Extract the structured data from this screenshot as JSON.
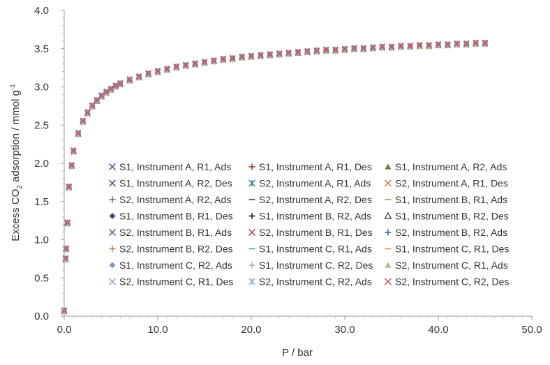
{
  "chart_data": {
    "type": "scatter",
    "title": "",
    "xlabel": "P / bar",
    "ylabel": {
      "prefix": "Excess CO",
      "sub": "2",
      "mid": " adsorption / mmol g",
      "sup": "-1"
    },
    "xlim": [
      0,
      50
    ],
    "ylim": [
      0,
      4
    ],
    "x_ticks": [
      "0.0",
      "10.0",
      "20.0",
      "30.0",
      "40.0",
      "50.0"
    ],
    "y_ticks": [
      "0.0",
      "0.5",
      "1.0",
      "1.5",
      "2.0",
      "2.5",
      "3.0",
      "3.5",
      "4.0"
    ],
    "grid": false,
    "legend_position": "lower-right, inside plot, 3 columns",
    "series": [
      {
        "name": "S1, Instrument A, R1, Ads",
        "color": "#3b4f8c",
        "marker": "x"
      },
      {
        "name": "S1, Instrument A, R1, Des",
        "color": "#9e2b2b",
        "marker": "+"
      },
      {
        "name": "S1, Instrument A, R2, Ads",
        "color": "#6b7b3a",
        "marker": "triangle"
      },
      {
        "name": "S1, Instrument A, R2, Des",
        "color": "#5b4a8a",
        "marker": "x"
      },
      {
        "name": "S2, Instrument A, R1, Ads",
        "color": "#3a8a96",
        "marker": "asterisk"
      },
      {
        "name": "S2, Instrument A, R1, Des",
        "color": "#d07a3a",
        "marker": "x"
      },
      {
        "name": "S2, Instrument A, R2, Ads",
        "color": "#4a6a9a",
        "marker": "+"
      },
      {
        "name": "S2, Instrument A, R2, Des",
        "color": "#333333",
        "marker": "dash"
      },
      {
        "name": "S1, Instrument B, R1, Ads",
        "color": "#8a9a4a",
        "marker": "dash"
      },
      {
        "name": "S1, Instrument B, R1, Des",
        "color": "#5a3a8a",
        "marker": "diamond"
      },
      {
        "name": "S1, Instrument B, R2, Ads",
        "color": "#111111",
        "marker": "+"
      },
      {
        "name": "S1, Instrument B, R2, Des",
        "color": "#333333",
        "marker": "triangle-open"
      },
      {
        "name": "S2, Instrument B, R1, Ads",
        "color": "#3a6aa0",
        "marker": "x"
      },
      {
        "name": "S2, Instrument B, R1, Des",
        "color": "#c03a3a",
        "marker": "x"
      },
      {
        "name": "S2, Instrument B, R2, Ads",
        "color": "#2a5a9a",
        "marker": "+"
      },
      {
        "name": "S2, Instrument B, R2, Des",
        "color": "#c07a4a",
        "marker": "+"
      },
      {
        "name": "S1, Instrument C, R1, Ads",
        "color": "#4a9a9a",
        "marker": "dash"
      },
      {
        "name": "S1, Instrument C, R1, Des",
        "color": "#e08a3a",
        "marker": "dash"
      },
      {
        "name": "S1, Instrument C, R2, Ads",
        "color": "#7a9ac0",
        "marker": "diamond"
      },
      {
        "name": "S1, Instrument C, R2, Des",
        "color": "#b0a0c8",
        "marker": "+"
      },
      {
        "name": "S2, Instrument C, R1, Ads",
        "color": "#a8c080",
        "marker": "triangle"
      },
      {
        "name": "S2, Instrument C, R1, Des",
        "color": "#9a9ad0",
        "marker": "x"
      },
      {
        "name": "S2, Instrument C, R2, Ads",
        "color": "#8ab0d0",
        "marker": "asterisk"
      },
      {
        "name": "S2, Instrument C, R2, Des",
        "color": "#d04a4a",
        "marker": "x"
      }
    ],
    "curve_points": [
      [
        0.0,
        0.07
      ],
      [
        0.15,
        0.75
      ],
      [
        0.2,
        0.88
      ],
      [
        0.35,
        1.22
      ],
      [
        0.5,
        1.69
      ],
      [
        0.8,
        1.97
      ],
      [
        1.0,
        2.16
      ],
      [
        1.5,
        2.39
      ],
      [
        2.0,
        2.55
      ],
      [
        2.5,
        2.66
      ],
      [
        3.0,
        2.75
      ],
      [
        3.5,
        2.82
      ],
      [
        4.0,
        2.88
      ],
      [
        4.5,
        2.93
      ],
      [
        5.0,
        2.97
      ],
      [
        5.5,
        3.01
      ],
      [
        6.0,
        3.04
      ],
      [
        7.0,
        3.09
      ],
      [
        8.0,
        3.13
      ],
      [
        9.0,
        3.17
      ],
      [
        10.0,
        3.2
      ],
      [
        11.0,
        3.23
      ],
      [
        12.0,
        3.26
      ],
      [
        13.0,
        3.28
      ],
      [
        14.0,
        3.3
      ],
      [
        15.0,
        3.32
      ],
      [
        16.0,
        3.34
      ],
      [
        17.0,
        3.36
      ],
      [
        18.0,
        3.37
      ],
      [
        19.0,
        3.39
      ],
      [
        20.0,
        3.4
      ],
      [
        21.0,
        3.41
      ],
      [
        22.0,
        3.42
      ],
      [
        23.0,
        3.43
      ],
      [
        24.0,
        3.44
      ],
      [
        25.0,
        3.45
      ],
      [
        26.0,
        3.46
      ],
      [
        27.0,
        3.47
      ],
      [
        28.0,
        3.48
      ],
      [
        29.0,
        3.48
      ],
      [
        30.0,
        3.49
      ],
      [
        31.0,
        3.5
      ],
      [
        32.0,
        3.5
      ],
      [
        33.0,
        3.51
      ],
      [
        34.0,
        3.52
      ],
      [
        35.0,
        3.52
      ],
      [
        36.0,
        3.53
      ],
      [
        37.0,
        3.53
      ],
      [
        38.0,
        3.54
      ],
      [
        39.0,
        3.54
      ],
      [
        40.0,
        3.55
      ],
      [
        41.0,
        3.55
      ],
      [
        42.0,
        3.56
      ],
      [
        43.0,
        3.56
      ],
      [
        44.0,
        3.57
      ],
      [
        45.0,
        3.57
      ]
    ]
  }
}
